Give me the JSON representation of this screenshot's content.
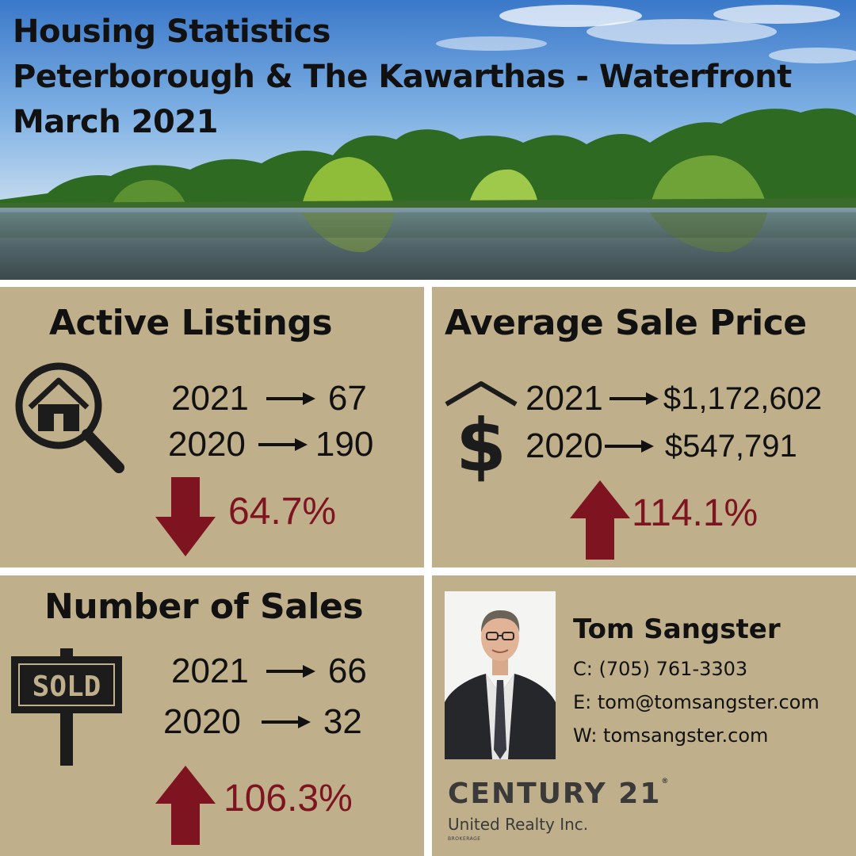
{
  "header": {
    "line1": "Housing Statistics",
    "line2": "Peterborough & The Kawarthas - Waterfront",
    "line3": "March 2021"
  },
  "active_listings": {
    "title": "Active Listings",
    "icon": "house-magnifier-icon",
    "rows": [
      {
        "year": "2021",
        "value": "67"
      },
      {
        "year": "2020",
        "value": "190"
      }
    ],
    "change": {
      "direction": "down",
      "percent": "64.7%"
    }
  },
  "average_sale_price": {
    "title": "Average Sale Price",
    "icon": "dollar-house-icon",
    "rows": [
      {
        "year": "2021",
        "value": "$1,172,602"
      },
      {
        "year": "2020",
        "value": "$547,791"
      }
    ],
    "change": {
      "direction": "up",
      "percent": "114.1%"
    }
  },
  "number_of_sales": {
    "title": "Number of Sales",
    "icon": "sold-sign-icon",
    "sign_text": "SOLD",
    "rows": [
      {
        "year": "2021",
        "value": "66"
      },
      {
        "year": "2020",
        "value": "32"
      }
    ],
    "change": {
      "direction": "up",
      "percent": "106.3%"
    }
  },
  "agent": {
    "name": "Tom Sangster",
    "cell": "C: (705) 761-3303",
    "email": "E: tom@tomsangster.com",
    "web": "W: tomsangster.com"
  },
  "brand": {
    "name": "CENTURY 21",
    "registered": "®",
    "office": "United Realty Inc.",
    "tag": "BROKERAGE"
  },
  "colors": {
    "panel_bg": "#bfb08b",
    "accent_red": "#7e1420",
    "text": "#111111",
    "sky": "#3f7fcf",
    "water": "#4a6470"
  }
}
